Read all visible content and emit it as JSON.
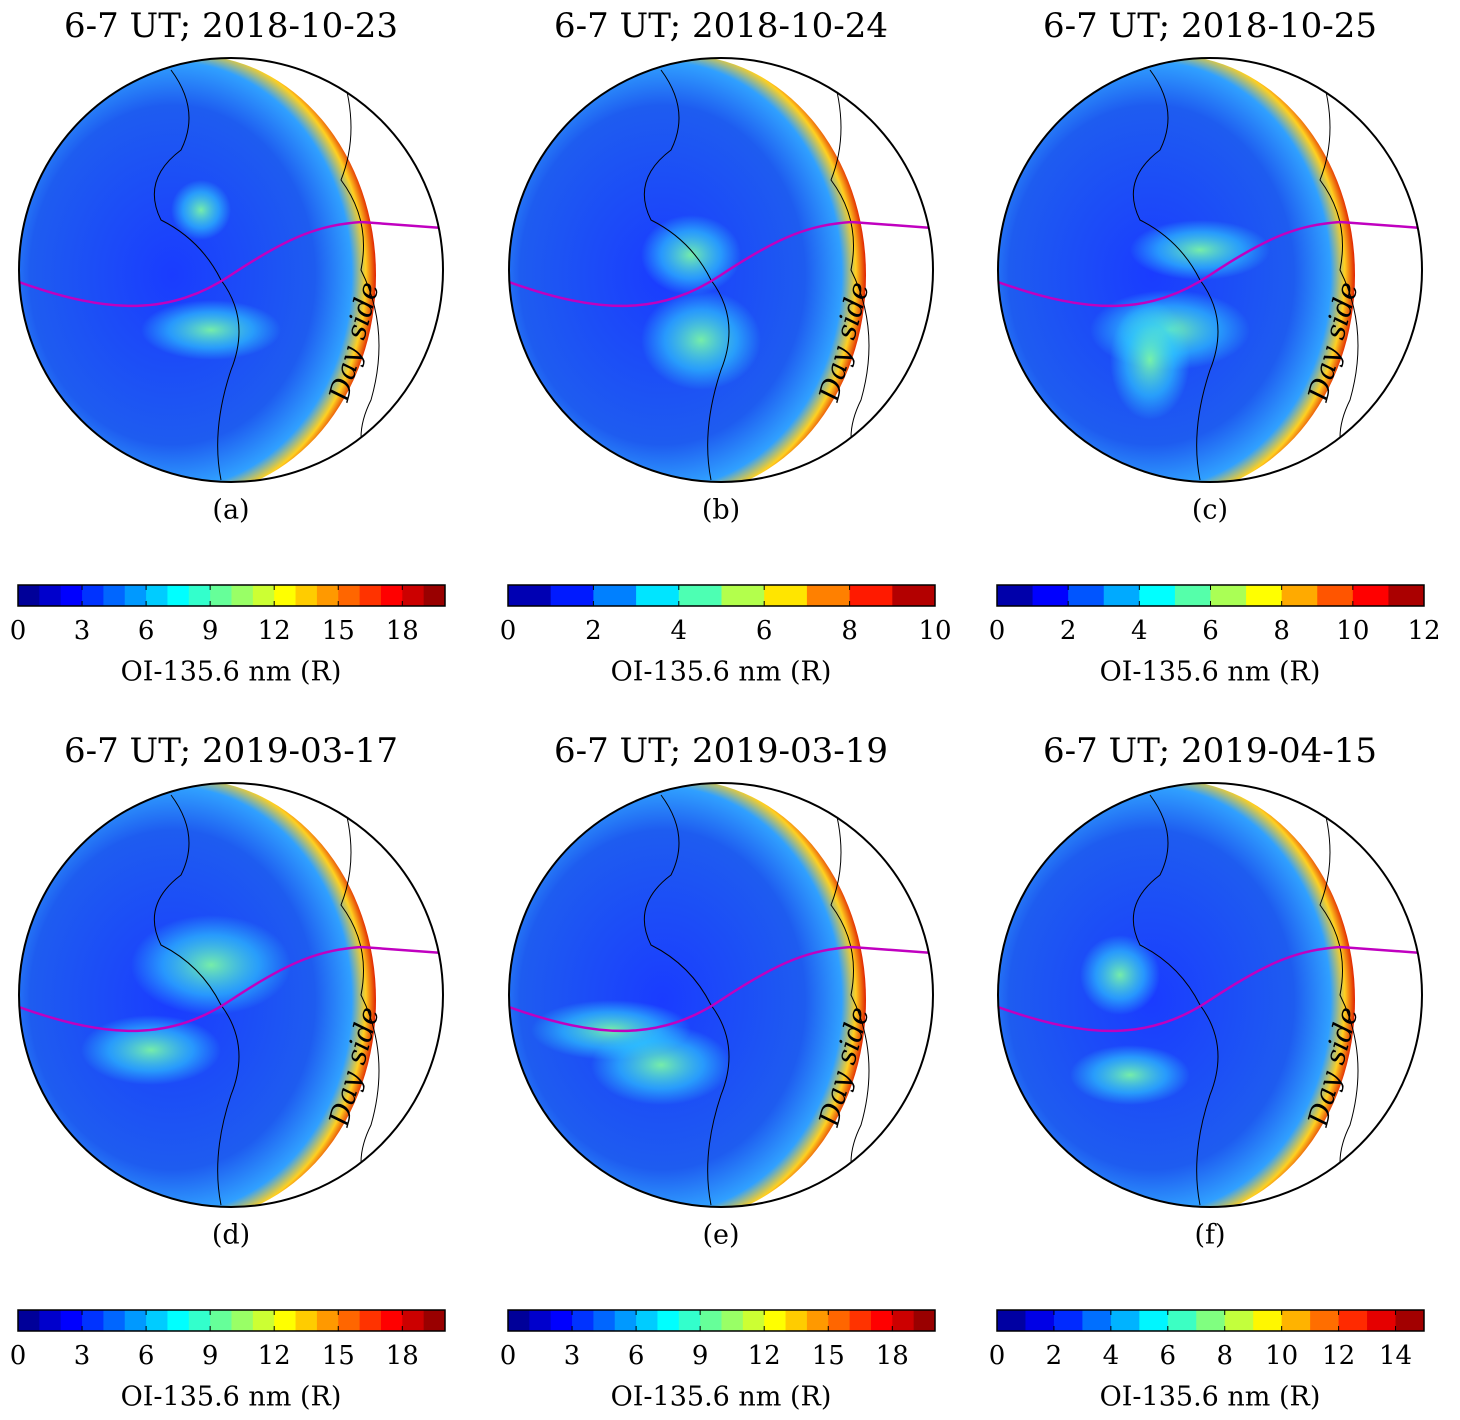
{
  "chart_data": [
    {
      "type": "map",
      "title": "6-7 UT; 2018-10-23",
      "caption": "(a)",
      "annotation": "Day side",
      "colorbar": {
        "label": "OI-135.6 nm (R)",
        "lim": [
          0,
          20
        ],
        "ticks": [
          0,
          3,
          6,
          9,
          12,
          15,
          18
        ]
      }
    },
    {
      "type": "map",
      "title": "6-7 UT; 2018-10-24",
      "caption": "(b)",
      "annotation": "Day side",
      "colorbar": {
        "label": "OI-135.6 nm (R)",
        "lim": [
          0,
          10
        ],
        "ticks": [
          0,
          2,
          4,
          6,
          8,
          10
        ]
      }
    },
    {
      "type": "map",
      "title": "6-7 UT; 2018-10-25",
      "caption": "(c)",
      "annotation": "Day side",
      "colorbar": {
        "label": "OI-135.6 nm (R)",
        "lim": [
          0,
          12
        ],
        "ticks": [
          0,
          2,
          4,
          6,
          8,
          10,
          12
        ]
      }
    },
    {
      "type": "map",
      "title": "6-7 UT; 2019-03-17",
      "caption": "(d)",
      "annotation": "Day side",
      "colorbar": {
        "label": "OI-135.6 nm (R)",
        "lim": [
          0,
          20
        ],
        "ticks": [
          0,
          3,
          6,
          9,
          12,
          15,
          18
        ]
      }
    },
    {
      "type": "map",
      "title": "6-7 UT; 2019-03-19",
      "caption": "(e)",
      "annotation": "Day side",
      "colorbar": {
        "label": "OI-135.6 nm (R)",
        "lim": [
          0,
          20
        ],
        "ticks": [
          0,
          3,
          6,
          9,
          12,
          15,
          18
        ]
      }
    },
    {
      "type": "map",
      "title": "6-7 UT; 2019-04-15",
      "caption": "(f)",
      "annotation": "Day side",
      "colorbar": {
        "label": "OI-135.6 nm (R)",
        "lim": [
          0,
          15
        ],
        "ticks": [
          0,
          2,
          4,
          6,
          8,
          10,
          12,
          14
        ]
      }
    }
  ]
}
